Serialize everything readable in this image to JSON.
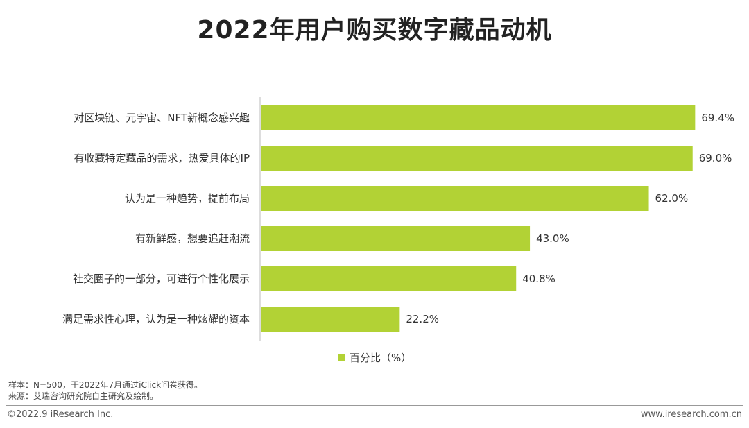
{
  "title": "2022年用户购买数字藏品动机",
  "colors": {
    "bar": "#b2d235"
  },
  "chart_data": {
    "type": "bar",
    "orientation": "horizontal",
    "categories": [
      "对区块链、元宇宙、NFT新概念感兴趣",
      "有收藏特定藏品的需求，热爱具体的IP",
      "认为是一种趋势，提前布局",
      "有新鲜感，想要追赶潮流",
      "社交圈子的一部分，可进行个性化展示",
      "满足需求性心理，认为是一种炫耀的资本"
    ],
    "series": [
      {
        "name": "百分比（%）",
        "values": [
          69.4,
          69.0,
          62.0,
          43.0,
          40.8,
          22.2
        ]
      }
    ],
    "value_labels": [
      "69.4%",
      "69.0%",
      "62.0%",
      "43.0%",
      "40.8%",
      "22.2%"
    ],
    "xlim": [
      0,
      80
    ],
    "legend_position": "bottom",
    "grid": false
  },
  "notes": {
    "sample": "样本：N=500，于2022年7月通过iClick问卷获得。",
    "source": "来源：艾瑞咨询研究院自主研究及绘制。"
  },
  "footer": {
    "copyright": "©2022.9 iResearch Inc.",
    "url": "www.iresearch.com.cn"
  }
}
